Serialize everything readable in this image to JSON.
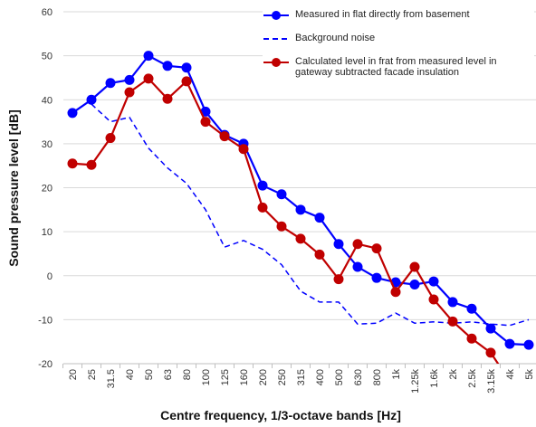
{
  "chart_data": {
    "type": "line",
    "x_label": "Centre frequency, 1/3-octave bands [Hz]",
    "y_label": "Sound pressure level [dB]",
    "categories": [
      "20",
      "25",
      "31.5",
      "40",
      "50",
      "63",
      "80",
      "100",
      "125",
      "160",
      "200",
      "250",
      "315",
      "400",
      "500",
      "630",
      "800",
      "1k",
      "1.25k",
      "1.6k",
      "2k",
      "2.5k",
      "3.15k",
      "4k",
      "5k"
    ],
    "ylim": [
      -20,
      60
    ],
    "yticks": [
      -20,
      -10,
      0,
      10,
      20,
      30,
      40,
      50,
      60
    ],
    "grid": true,
    "legend": "top-right",
    "series": [
      {
        "name": "Measured in flat directly from basement",
        "color": "#0000ff",
        "style": "solid-marker",
        "values": [
          37,
          40,
          43.8,
          44.5,
          50,
          47.7,
          47.3,
          37.3,
          32,
          30,
          20.5,
          18.5,
          15,
          13.2,
          7.2,
          2,
          -0.5,
          -1.5,
          -2,
          -1.3,
          -6,
          -7.5,
          -12,
          -15.5,
          -15.7
        ]
      },
      {
        "name": "Background noise",
        "color": "#0000ff",
        "style": "dashed",
        "values": [
          null,
          39,
          35,
          36,
          29,
          24.5,
          21,
          15,
          6.5,
          8,
          6,
          2.5,
          -3.5,
          -6,
          -6,
          -11,
          -10.8,
          -8.5,
          -10.8,
          -10.5,
          -10.8,
          -10.5,
          -11,
          -11.3,
          -10
        ]
      },
      {
        "name": "Calculated level in frat from measured level in gateway subtracted facade insulation",
        "color": "#c00000",
        "style": "solid-marker",
        "values": [
          25.5,
          25.2,
          31.3,
          41.7,
          44.8,
          40.2,
          44.2,
          35,
          31.7,
          28.8,
          15.5,
          11.2,
          8.4,
          4.8,
          -0.8,
          7.2,
          6.2,
          -3.7,
          2,
          -5.4,
          -10.4,
          -14.3,
          -17.5,
          -24,
          null
        ]
      }
    ]
  }
}
